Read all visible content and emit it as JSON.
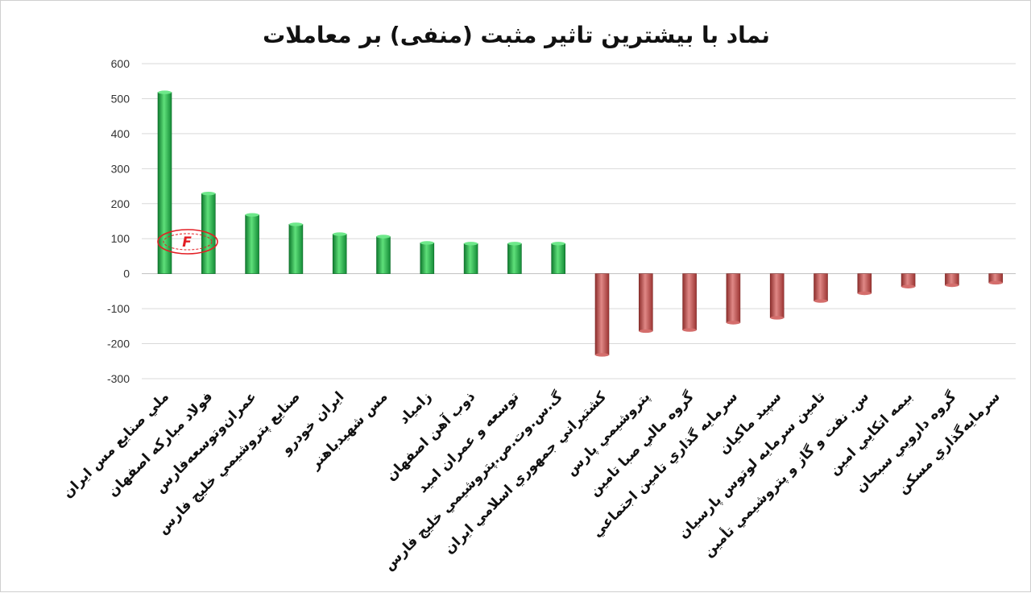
{
  "chart_data": {
    "type": "bar",
    "title": "نماد با بیشترین تاثیر مثبت (منفی) بر معاملات",
    "xlabel": "",
    "ylabel": "",
    "ylim": [
      -300,
      600
    ],
    "yticks": [
      600,
      500,
      400,
      300,
      200,
      100,
      0,
      -100,
      -200,
      -300
    ],
    "grid": true,
    "legend": "none",
    "positive_color": "#1fae4b",
    "negative_color": "#c0504d",
    "categories": [
      "ملي صنايع مس ايران",
      "فولاد مباركه اصفهان",
      "عمران‌وتوسعه‌فارس",
      "صنايع پتروشيمي خليج فارس",
      "ايران خودرو",
      "مس شهيدباهنر",
      "زامياد",
      "ذوب آهن اصفهان",
      "توسعه و عمران اميد",
      "گ.س.وت.ص.پتروشيمي خليج فارس",
      "كشتيراني جمهوري اسلامي ايران",
      "پتروشيمي پارس",
      "گروه مالي صبا تامين",
      "سرمايه گذاري تامين اجتماعي",
      "سپيد ماكيان",
      "تامين سرمايه لوتوس پارسيان",
      "س. نفت و گاز و پتروشيمي تأمين",
      "بيمه اتكايي امين",
      "گروه دارويي سبحان",
      "سرمايه‌گذاري مسكن"
    ],
    "values": [
      518,
      229,
      168,
      141,
      113,
      106,
      88,
      86,
      86,
      86,
      -232,
      -164,
      -161,
      -140,
      -126,
      -78,
      -56,
      -37,
      -33,
      -26
    ]
  },
  "watermark": {
    "text": "F",
    "color": "#e31e24"
  }
}
